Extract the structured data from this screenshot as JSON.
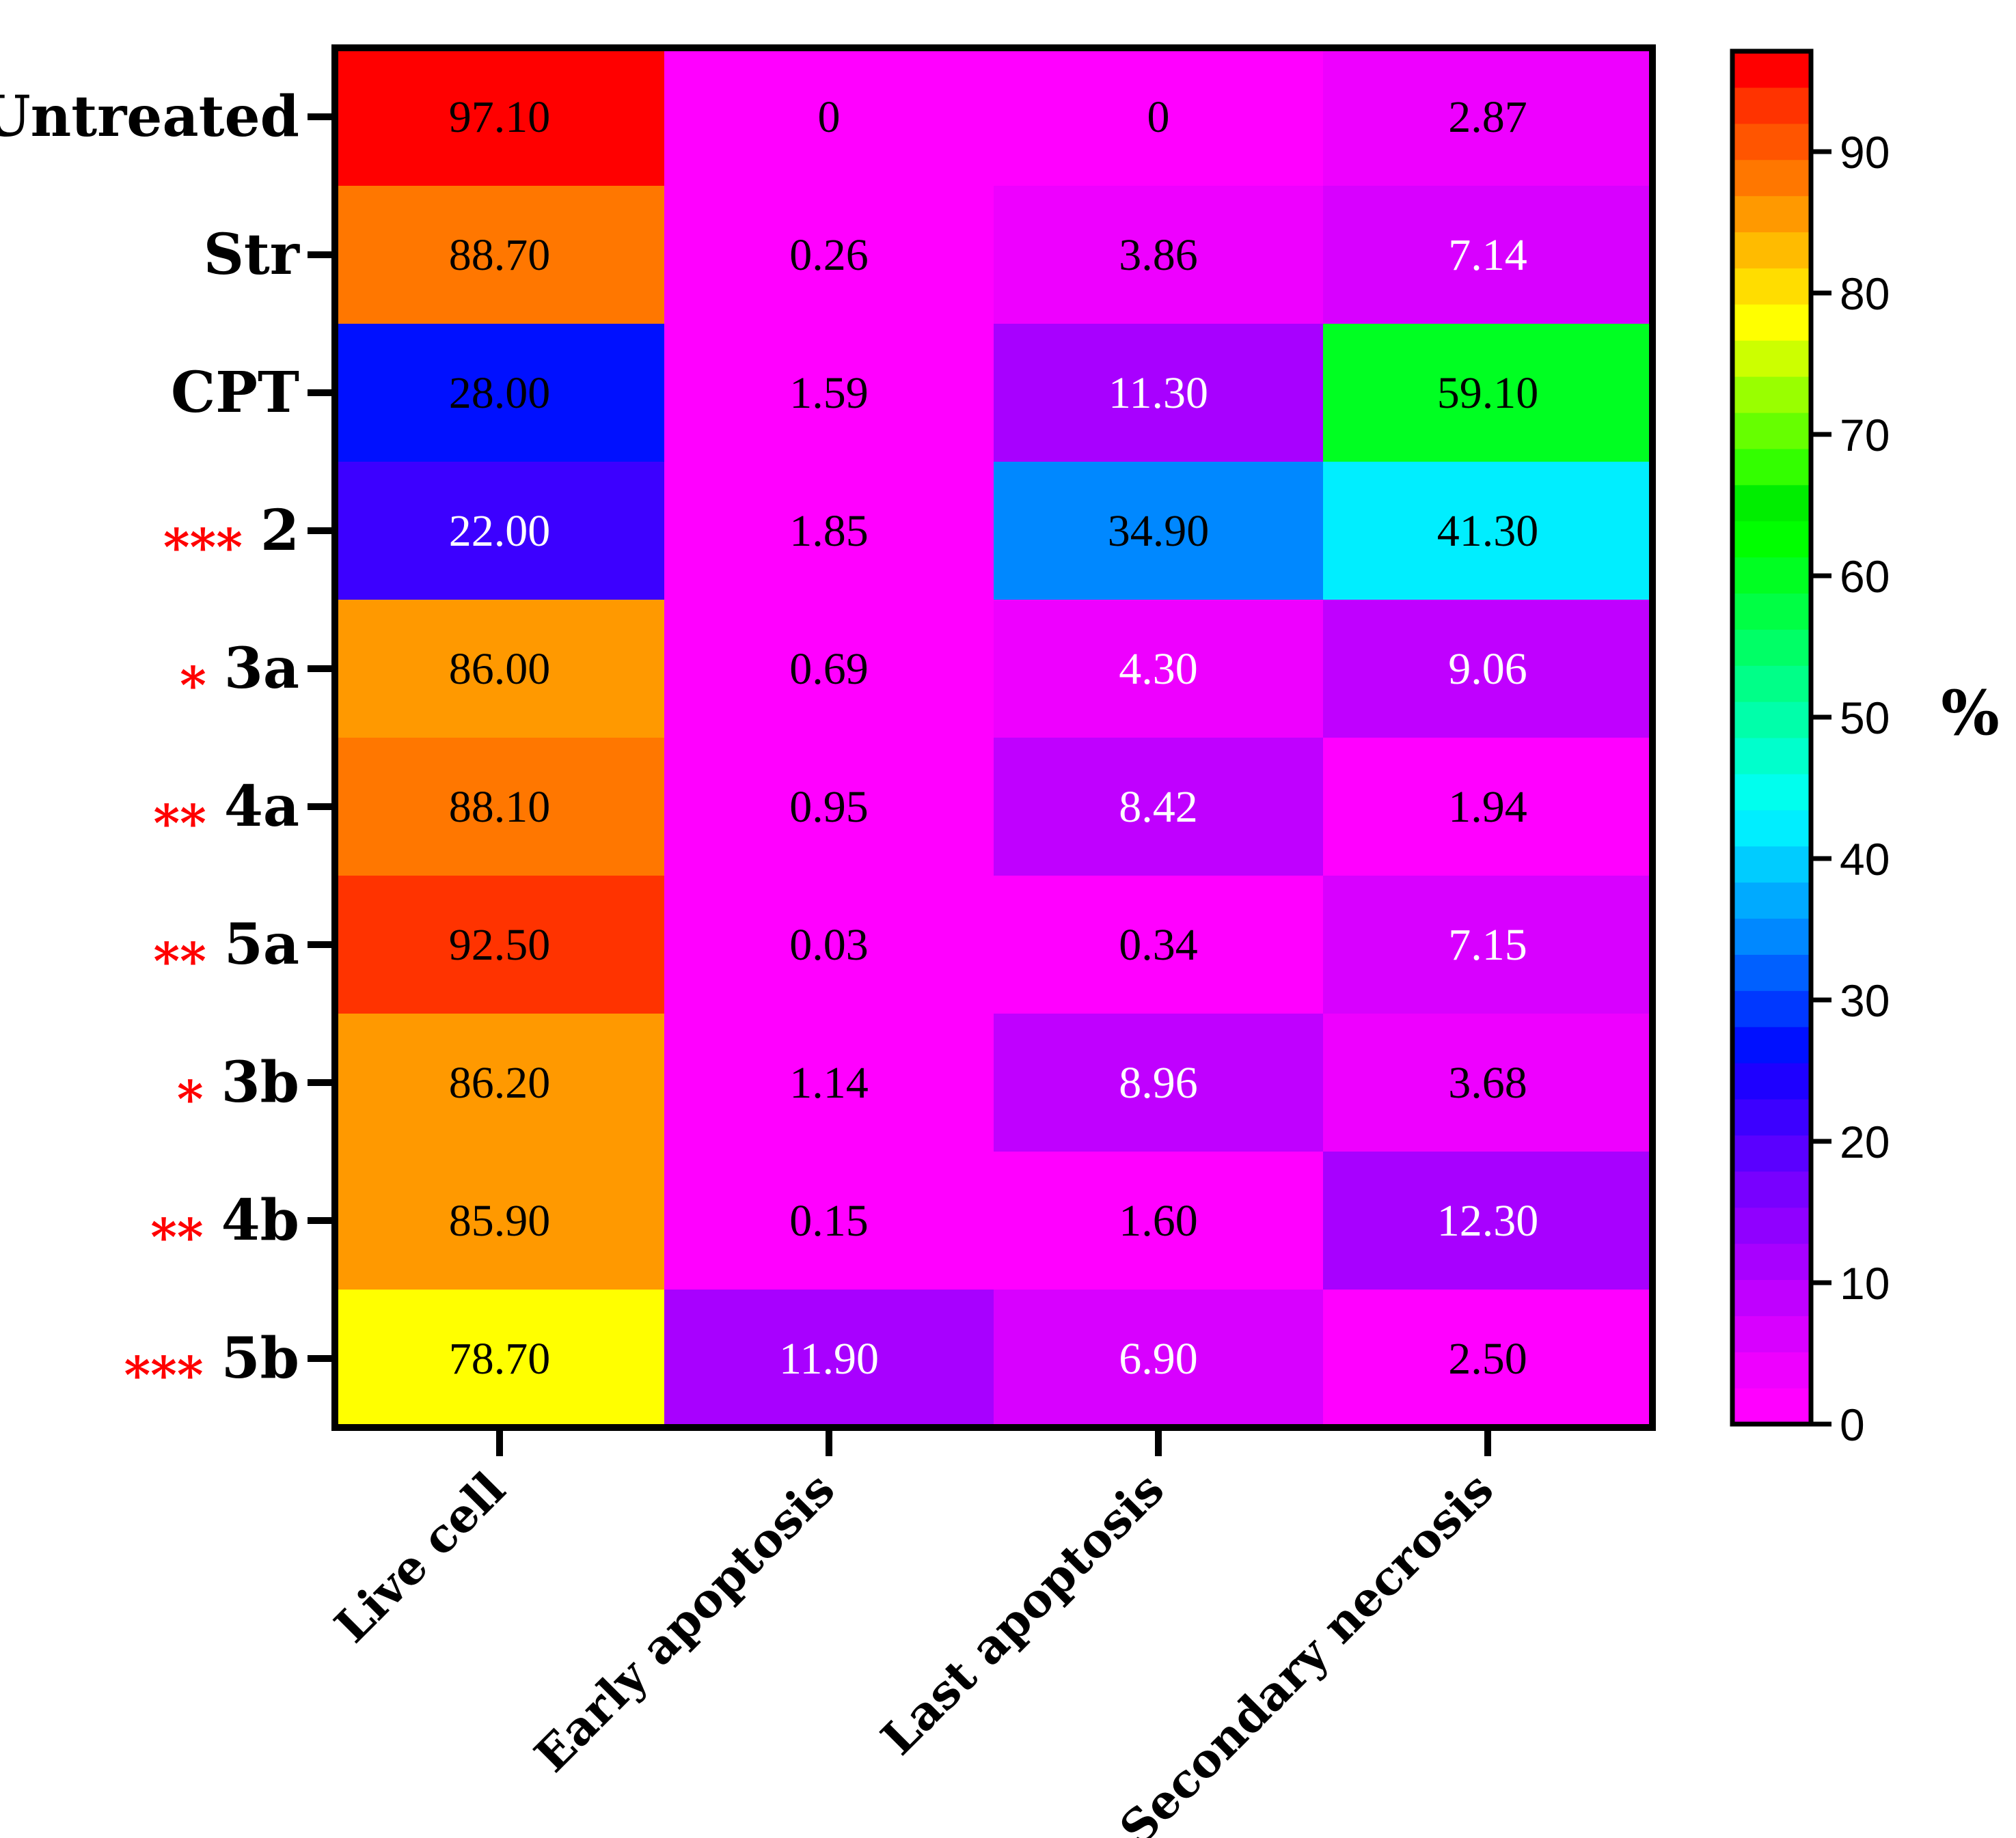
{
  "chart_data": {
    "type": "heatmap",
    "title": "",
    "rows": [
      "Untreated",
      "Str",
      "CPT",
      "2",
      "3a",
      "4a",
      "5a",
      "3b",
      "4b",
      "5b"
    ],
    "row_significance": [
      "",
      "",
      "",
      "***",
      "*",
      "**",
      "**",
      "*",
      "**",
      "***"
    ],
    "columns": [
      "Live cell",
      "Early apoptosis",
      "Last apoptosis",
      "Secondary necrosis"
    ],
    "cell_labels": [
      [
        "97.10",
        "0",
        "0",
        "2.87"
      ],
      [
        "88.70",
        "0.26",
        "3.86",
        "7.14"
      ],
      [
        "28.00",
        "1.59",
        "11.30",
        "59.10"
      ],
      [
        "22.00",
        "1.85",
        "34.90",
        "41.30"
      ],
      [
        "86.00",
        "0.69",
        "4.30",
        "9.06"
      ],
      [
        "88.10",
        "0.95",
        "8.42",
        "1.94"
      ],
      [
        "92.50",
        "0.03",
        "0.34",
        "7.15"
      ],
      [
        "86.20",
        "1.14",
        "8.96",
        "3.68"
      ],
      [
        "85.90",
        "0.15",
        "1.60",
        "12.30"
      ],
      [
        "78.70",
        "11.90",
        "6.90",
        "2.50"
      ]
    ],
    "colorbar": {
      "title": "%",
      "range": [
        0,
        97.1
      ],
      "ticks": [
        0,
        10,
        20,
        30,
        40,
        50,
        60,
        70,
        80,
        90
      ],
      "colors": [
        "#ff00ff",
        "#ee00ff",
        "#d800ff",
        "#c000ff",
        "#a800ff",
        "#9000ff",
        "#7800ff",
        "#5a00ff",
        "#3c00ff",
        "#1e00ff",
        "#0010ff",
        "#0038ff",
        "#0060ff",
        "#0088ff",
        "#00aaff",
        "#00ccff",
        "#00eeff",
        "#00ffee",
        "#00ffcc",
        "#00ffaa",
        "#00ff88",
        "#00ff66",
        "#00ff44",
        "#00ff22",
        "#00ff00",
        "#00ee00",
        "#33ff00",
        "#66ff00",
        "#99ff00",
        "#ccff00",
        "#ffff00",
        "#ffdd00",
        "#ffbb00",
        "#ff9900",
        "#ff7700",
        "#ff5500",
        "#ff3300",
        "#ff0000"
      ]
    }
  }
}
